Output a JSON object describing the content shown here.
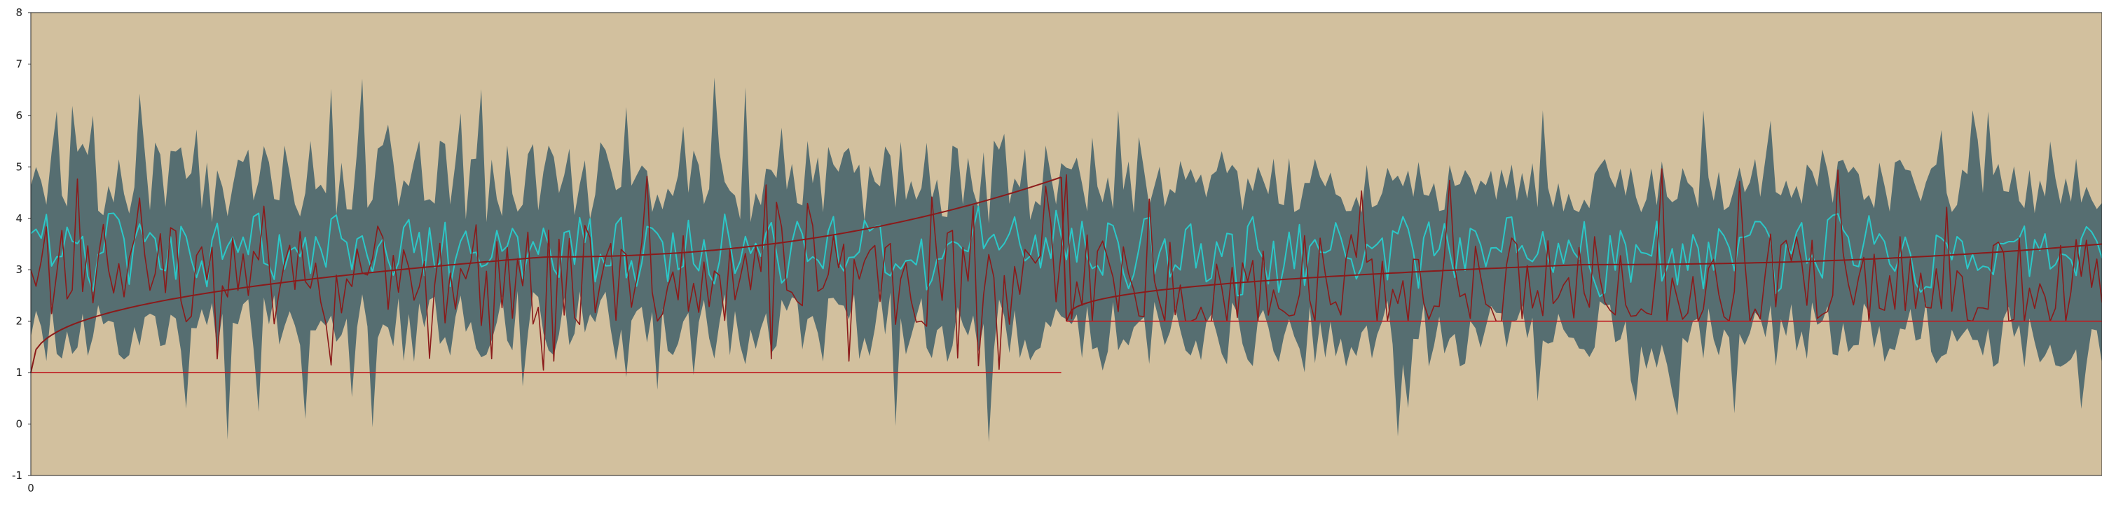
{
  "chart_data": {
    "type": "area",
    "title": "",
    "xlabel": "",
    "ylabel": "",
    "ylim": [
      -1,
      8
    ],
    "x_range": [
      0,
      400
    ],
    "y_ticks": [
      -1,
      0,
      1,
      2,
      3,
      4,
      5,
      6,
      7,
      8
    ],
    "x_ticks": [
      0
    ],
    "grid": false,
    "legend": "none",
    "colors": {
      "plot_background": "#D2C09E",
      "band_fill": "#566E71",
      "band_inner_ridge": "#5F7E7F",
      "cyan_series": "#2BC8C8",
      "red_series": "#8B1A1A",
      "floor_series": "#C0191F",
      "axis": "#222222"
    },
    "segments": [
      {
        "x_start": 0,
        "x_end": 199,
        "floor_level": 1,
        "cumulative_mean": {
          "start": 1.0,
          "mid": 3.25,
          "end": 4.8
        },
        "cyan_mean": 3.4,
        "red_mean": 2.9,
        "band_upper_range": [
          3.5,
          7.1
        ],
        "band_lower_range": [
          -0.35,
          2.8
        ]
      },
      {
        "x_start": 200,
        "x_end": 400,
        "floor_level": 2,
        "cumulative_mean": {
          "start": 2.0,
          "mid": 3.1,
          "end": 3.5
        },
        "cyan_mean": 3.3,
        "red_mean": 2.7,
        "band_upper_range": [
          3.7,
          6.1
        ],
        "band_lower_range": [
          -0.3,
          2.6
        ]
      }
    ],
    "series": [
      {
        "key": "range_band"
      },
      {
        "key": "cyan_noisy"
      },
      {
        "key": "red_noisy"
      },
      {
        "key": "cumulative_mean"
      },
      {
        "key": "floor"
      }
    ]
  }
}
